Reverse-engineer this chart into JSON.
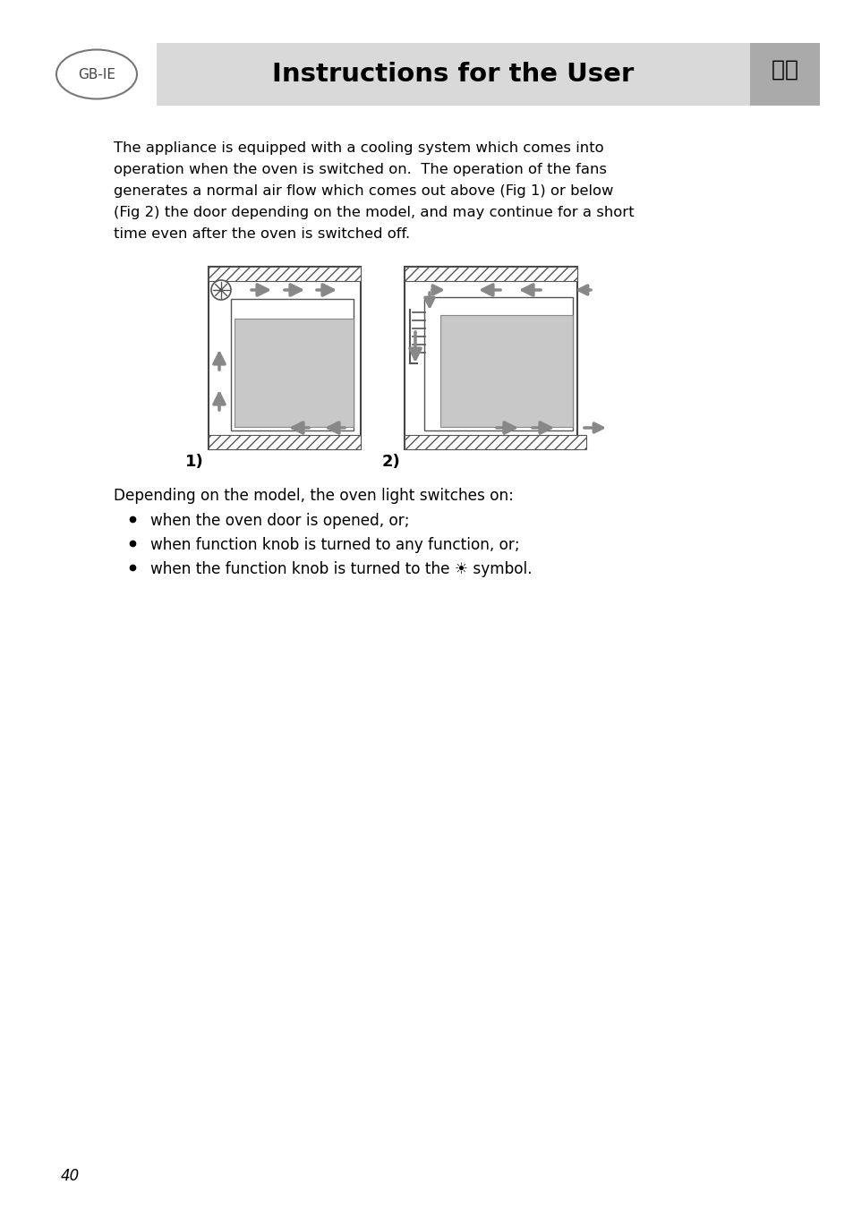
{
  "title": "Instructions for the User",
  "gb_ie_label": "GB-IE",
  "page_number": "40",
  "background_color": "#ffffff",
  "header_bg_color": "#d9d9d9",
  "header_text_color": "#000000",
  "body_lines": [
    "The appliance is equipped with a cooling system which comes into",
    "operation when the oven is switched on.  The operation of the fans",
    "generates a normal air flow which comes out above (Fig 1) or below",
    "(Fig 2) the door depending on the model, and may continue for a short",
    "time even after the oven is switched off."
  ],
  "fig1_label": "1)",
  "fig2_label": "2)",
  "section2_title": "Depending on the model, the oven light switches on:",
  "bullet_points": [
    "when the oven door is opened, or;",
    "when function knob is turned to any function, or;",
    "when the function knob is turned to the ☀ symbol."
  ],
  "arrow_color": "#888888",
  "oven_body_color": "#c8c8c8",
  "hatch_color": "#888888",
  "text_color": "#000000"
}
